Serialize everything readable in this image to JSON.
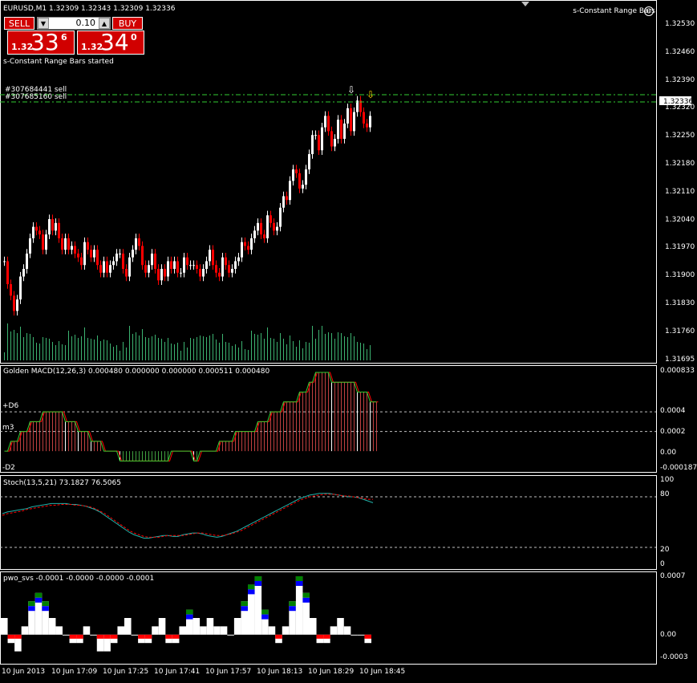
{
  "header": {
    "symbol_info": "EURUSD,M1  1.32309 1.32343 1.32309 1.32336",
    "indicator_name": "s-Constant Range Bars",
    "status_message": "s-Constant Range Bars started"
  },
  "trade_panel": {
    "sell_label": "SELL",
    "buy_label": "BUY",
    "lot_value": "0.10",
    "bid": {
      "prefix": "1.32",
      "big": "33",
      "pip": "6"
    },
    "ask": {
      "prefix": "1.32",
      "big": "34",
      "pip": "0"
    }
  },
  "orders": [
    "#307684441 sell",
    "#307685160 sell"
  ],
  "price_axis": {
    "ticks": [
      "1.32530",
      "1.32460",
      "1.32390",
      "1.32320",
      "1.32250",
      "1.32180",
      "1.32110",
      "1.32040",
      "1.31970",
      "1.31900",
      "1.31830",
      "1.31760",
      "1.31695"
    ],
    "current_price": "1.32336"
  },
  "macd_panel": {
    "title": "Golden MACD(12,26,3) 0.000480 0.000000 0.000000 0.000511 0.000480",
    "axis_ticks": [
      "0.000833",
      "0.0004",
      "0.0002",
      "0.00",
      "-0.000187"
    ],
    "level_labels": [
      "+D6",
      "m3",
      "-D2"
    ]
  },
  "stoch_panel": {
    "title": "Stoch(13,5,21) 73.1827 76.5065",
    "axis_ticks": [
      "100",
      "80",
      "20",
      "0"
    ]
  },
  "pwo_panel": {
    "title": "pwo_svs -0.0001 -0.0000 -0.0000 -0.0001",
    "axis_ticks": [
      "0.0007",
      "0.00",
      "-0.0003"
    ]
  },
  "time_axis": [
    "10 Jun 2013",
    "10 Jun 17:09",
    "10 Jun 17:25",
    "10 Jun 17:41",
    "10 Jun 17:57",
    "10 Jun 18:13",
    "10 Jun 18:29",
    "10 Jun 18:45"
  ],
  "colors": {
    "background": "#000000",
    "bull_candle": "#ffffff",
    "bear_candle": "#ff0000",
    "volume": "#3cb371",
    "order_line": "#32cd32",
    "signal_arrow": "#ffd700",
    "macd_line": "#32cd32",
    "signal_line": "#ff0000",
    "stoch_main": "#20b2aa",
    "stoch_signal": "#ff0000",
    "pwo_green": "#008000",
    "pwo_blue": "#0000ff",
    "pwo_red": "#ff0000",
    "pwo_white": "#ffffff"
  },
  "chart_data": [
    {
      "type": "candlestick",
      "symbol": "EURUSD",
      "timeframe": "M1",
      "ylim": [
        1.31695,
        1.3257
      ],
      "close": [
        1.3195,
        1.3189,
        1.3186,
        1.3182,
        1.3185,
        1.3191,
        1.3193,
        1.3197,
        1.3201,
        1.3204,
        1.3203,
        1.3202,
        1.3198,
        1.3202,
        1.3206,
        1.3203,
        1.3205,
        1.3201,
        1.3198,
        1.3201,
        1.3198,
        1.3199,
        1.3197,
        1.3196,
        1.3194,
        1.32,
        1.3198,
        1.3196,
        1.3198,
        1.3194,
        1.3192,
        1.3195,
        1.3192,
        1.3194,
        1.3195,
        1.3197,
        1.3197,
        1.3193,
        1.3191,
        1.3196,
        1.3198,
        1.3201,
        1.3199,
        1.3194,
        1.3192,
        1.3194,
        1.3197,
        1.3193,
        1.319,
        1.3193,
        1.3191,
        1.3195,
        1.3193,
        1.3195,
        1.3192,
        1.3192,
        1.3196,
        1.3194,
        1.3194,
        1.3194,
        1.3193,
        1.3191,
        1.3193,
        1.3195,
        1.3198,
        1.3194,
        1.3192,
        1.3191,
        1.3196,
        1.3194,
        1.3192,
        1.3193,
        1.3195,
        1.3196,
        1.32,
        1.3199,
        1.3198,
        1.3201,
        1.3203,
        1.3205,
        1.3202,
        1.3201,
        1.3207,
        1.3205,
        1.3203,
        1.3204,
        1.3209,
        1.3212,
        1.3211,
        1.3216,
        1.3219,
        1.3218,
        1.3214,
        1.3215,
        1.3219,
        1.3223,
        1.3228,
        1.3228,
        1.3224,
        1.323,
        1.3233,
        1.3229,
        1.3225,
        1.3227,
        1.3232,
        1.3227,
        1.3231,
        1.3235,
        1.3229,
        1.3234,
        1.3237,
        1.3234,
        1.3231,
        1.323,
        1.3233
      ]
    },
    {
      "type": "histogram",
      "name": "Golden MACD(12,26,3)",
      "values": [
        0.0,
        0.0,
        0.0001,
        0.0001,
        0.0001,
        0.0002,
        0.0002,
        0.0002,
        0.0003,
        0.0003,
        0.0003,
        0.0003,
        0.0004,
        0.0004,
        0.0004,
        0.0004,
        0.0004,
        0.0004,
        0.0004,
        0.0003,
        0.0003,
        0.0003,
        0.0003,
        0.0002,
        0.0002,
        0.0002,
        0.0002,
        0.0001,
        0.0001,
        0.0001,
        0.0001,
        0.0,
        0.0,
        -0.0,
        -0.0,
        -0.0,
        -0.0001,
        -0.0001,
        -0.0001,
        -0.0001,
        -0.0001,
        -0.0001,
        -0.0001,
        -0.0001,
        -0.0001,
        -0.0001,
        -0.0001,
        -0.0001,
        -0.0001,
        -0.0001,
        -0.0001,
        -0.0001,
        -0.0,
        -0.0,
        -0.0,
        -0.0,
        -0.0,
        -0.0,
        -0.0,
        -0.0001,
        -0.0001,
        -0.0,
        -0.0,
        -0.0,
        0.0,
        0.0,
        0.0,
        0.0001,
        0.0001,
        0.0001,
        0.0001,
        0.0001,
        0.0002,
        0.0002,
        0.0002,
        0.0002,
        0.0002,
        0.0002,
        0.0002,
        0.0003,
        0.0003,
        0.0003,
        0.0003,
        0.0004,
        0.0004,
        0.0004,
        0.0004,
        0.0005,
        0.0005,
        0.0005,
        0.0005,
        0.0005,
        0.0006,
        0.0006,
        0.0006,
        0.0007,
        0.0007,
        0.0008,
        0.0008,
        0.0008,
        0.0008,
        0.0008,
        0.0007,
        0.0007,
        0.0007,
        0.0007,
        0.0007,
        0.0007,
        0.0007,
        0.0007,
        0.0006,
        0.0006,
        0.0006,
        0.0006,
        0.0005,
        0.0005,
        0.0005
      ],
      "ylim": [
        -0.000187,
        0.000833
      ]
    },
    {
      "type": "line",
      "name": "Stoch(13,5,21)",
      "series": [
        {
          "name": "main",
          "values": [
            60,
            62,
            63,
            64,
            65,
            66,
            68,
            69,
            70,
            71,
            72,
            72,
            72,
            72,
            71,
            71,
            70,
            69,
            67,
            65,
            62,
            58,
            54,
            50,
            46,
            42,
            38,
            35,
            33,
            31,
            31,
            32,
            33,
            34,
            34,
            33,
            33,
            35,
            36,
            37,
            37,
            36,
            34,
            33,
            32,
            33,
            35,
            37,
            39,
            42,
            45,
            48,
            51,
            54,
            57,
            60,
            63,
            66,
            69,
            72,
            75,
            78,
            80,
            82,
            83,
            84,
            84,
            84,
            83,
            82,
            81,
            80,
            80,
            79,
            77,
            75,
            73
          ]
        },
        {
          "name": "signal",
          "values": [
            58,
            60,
            61,
            62,
            63,
            65,
            66,
            67,
            68,
            69,
            70,
            70,
            71,
            71,
            71,
            70,
            70,
            69,
            68,
            66,
            63,
            60,
            56,
            52,
            48,
            44,
            40,
            37,
            35,
            33,
            32,
            32,
            32,
            33,
            34,
            34,
            34,
            34,
            35,
            36,
            37,
            37,
            36,
            35,
            34,
            34,
            35,
            36,
            38,
            40,
            43,
            46,
            49,
            52,
            55,
            58,
            61,
            64,
            67,
            70,
            73,
            76,
            78,
            80,
            81,
            82,
            83,
            83,
            83,
            82,
            81,
            81,
            80,
            79,
            78,
            77,
            77
          ]
        }
      ],
      "ylim": [
        0,
        100
      ],
      "levels": [
        80,
        20
      ]
    },
    {
      "type": "bar",
      "name": "pwo_svs",
      "values": [
        0.0002,
        -0.0001,
        -0.0002,
        0.0001,
        0.0004,
        0.0005,
        0.0004,
        0.0002,
        0.0001,
        0.0,
        -0.0001,
        -0.0001,
        0.0001,
        0.0,
        -0.0002,
        -0.0002,
        -0.0001,
        0.0001,
        0.0002,
        0.0,
        -0.0001,
        -0.0001,
        0.0001,
        0.0002,
        -0.0001,
        -0.0001,
        0.0001,
        0.0003,
        0.0002,
        0.0001,
        0.0002,
        0.0001,
        0.0001,
        0.0,
        0.0002,
        0.0004,
        0.0006,
        0.0007,
        0.0003,
        0.0001,
        -0.0001,
        0.0001,
        0.0004,
        0.0007,
        0.0005,
        0.0002,
        -0.0001,
        -0.0001,
        0.0001,
        0.0002,
        0.0001,
        0.0,
        0.0,
        -0.0001
      ],
      "ylim": [
        -0.0003,
        0.0007
      ]
    }
  ]
}
